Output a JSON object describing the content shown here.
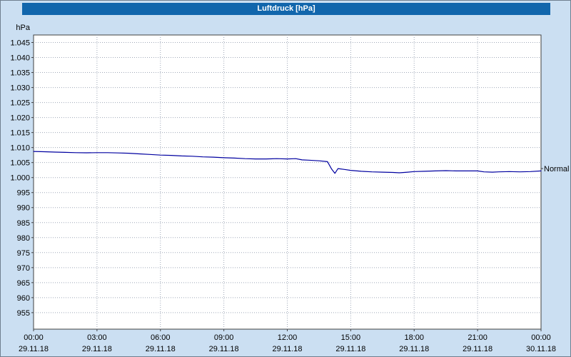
{
  "window": {
    "title": "Luftdruck [hPa]"
  },
  "colors": {
    "titlebar_bg": "#1166ac",
    "titlebar_text": "#ffffff",
    "background": "#cbdff2",
    "plot_bg": "#ffffff",
    "grid": "#9fa8b8",
    "axis": "#404040",
    "line": "#0000a0",
    "text": "#000000"
  },
  "chart_data": {
    "type": "line",
    "title": "Luftdruck [hPa]",
    "ylabel": "hPa",
    "ylim": [
      949.5,
      1047.5
    ],
    "xlim_hours": [
      0,
      24
    ],
    "grid": true,
    "legend_position": "none",
    "y_ticks": [
      {
        "label": "1.045",
        "value": 1045
      },
      {
        "label": "1.040",
        "value": 1040
      },
      {
        "label": "1.035",
        "value": 1035
      },
      {
        "label": "1.030",
        "value": 1030
      },
      {
        "label": "1.025",
        "value": 1025
      },
      {
        "label": "1.020",
        "value": 1020
      },
      {
        "label": "1.015",
        "value": 1015
      },
      {
        "label": "1.010",
        "value": 1010
      },
      {
        "label": "1.005",
        "value": 1005
      },
      {
        "label": "1.000",
        "value": 1000
      },
      {
        "label": "995",
        "value": 995
      },
      {
        "label": "990",
        "value": 990
      },
      {
        "label": "985",
        "value": 985
      },
      {
        "label": "980",
        "value": 980
      },
      {
        "label": "975",
        "value": 975
      },
      {
        "label": "970",
        "value": 970
      },
      {
        "label": "965",
        "value": 965
      },
      {
        "label": "960",
        "value": 960
      },
      {
        "label": "955",
        "value": 955
      }
    ],
    "x_ticks": [
      {
        "time": "00:00",
        "date": "29.11.18",
        "hour": 0
      },
      {
        "time": "03:00",
        "date": "29.11.18",
        "hour": 3
      },
      {
        "time": "06:00",
        "date": "29.11.18",
        "hour": 6
      },
      {
        "time": "09:00",
        "date": "29.11.18",
        "hour": 9
      },
      {
        "time": "12:00",
        "date": "29.11.18",
        "hour": 12
      },
      {
        "time": "15:00",
        "date": "29.11.18",
        "hour": 15
      },
      {
        "time": "18:00",
        "date": "29.11.18",
        "hour": 18
      },
      {
        "time": "21:00",
        "date": "29.11.18",
        "hour": 21
      },
      {
        "time": "00:00",
        "date": "30.11.18",
        "hour": 24
      }
    ],
    "series": [
      {
        "name": "Luftdruck",
        "color": "#0000a0",
        "points": [
          [
            0,
            1008.7
          ],
          [
            0.5,
            1008.6
          ],
          [
            1,
            1008.5
          ],
          [
            1.5,
            1008.4
          ],
          [
            2,
            1008.3
          ],
          [
            2.5,
            1008.25
          ],
          [
            3,
            1008.3
          ],
          [
            3.5,
            1008.3
          ],
          [
            4,
            1008.2
          ],
          [
            4.5,
            1008.1
          ],
          [
            5,
            1007.9
          ],
          [
            5.5,
            1007.7
          ],
          [
            6,
            1007.5
          ],
          [
            6.5,
            1007.4
          ],
          [
            7,
            1007.2
          ],
          [
            7.5,
            1007.1
          ],
          [
            8,
            1006.9
          ],
          [
            8.5,
            1006.8
          ],
          [
            9,
            1006.6
          ],
          [
            9.5,
            1006.5
          ],
          [
            10,
            1006.3
          ],
          [
            10.5,
            1006.2
          ],
          [
            11,
            1006.2
          ],
          [
            11.5,
            1006.3
          ],
          [
            12,
            1006.2
          ],
          [
            12.4,
            1006.3
          ],
          [
            12.7,
            1005.9
          ],
          [
            13,
            1005.8
          ],
          [
            13.5,
            1005.6
          ],
          [
            13.9,
            1005.3
          ],
          [
            14.1,
            1002.8
          ],
          [
            14.25,
            1001.4
          ],
          [
            14.4,
            1003.0
          ],
          [
            14.7,
            1002.7
          ],
          [
            15,
            1002.4
          ],
          [
            15.5,
            1002.1
          ],
          [
            16,
            1001.9
          ],
          [
            16.5,
            1001.8
          ],
          [
            17,
            1001.7
          ],
          [
            17.3,
            1001.6
          ],
          [
            17.7,
            1001.8
          ],
          [
            18,
            1002.0
          ],
          [
            18.5,
            1002.1
          ],
          [
            19,
            1002.2
          ],
          [
            19.5,
            1002.3
          ],
          [
            20,
            1002.2
          ],
          [
            20.5,
            1002.2
          ],
          [
            21,
            1002.2
          ],
          [
            21.3,
            1001.9
          ],
          [
            21.7,
            1001.8
          ],
          [
            22,
            1001.9
          ],
          [
            22.5,
            1002.0
          ],
          [
            23,
            1001.9
          ],
          [
            23.5,
            1002.0
          ],
          [
            24,
            1002.2
          ]
        ]
      }
    ],
    "annotations": [
      {
        "text": "Normal",
        "value": 1003,
        "position": "right"
      }
    ]
  }
}
